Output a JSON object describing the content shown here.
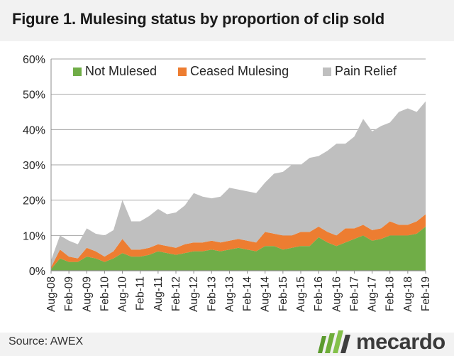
{
  "title": "Figure 1. Mulesing status by proportion of clip sold",
  "source": "Source: AWEX",
  "brand": {
    "name": "mecardo",
    "logo_icon": "mecardo-logo-icon"
  },
  "chart_data": {
    "type": "area",
    "stacked": true,
    "title": "Figure 1. Mulesing status by proportion of clip sold",
    "xlabel": "",
    "ylabel": "",
    "ylim": [
      0,
      60
    ],
    "yticks": [
      "0%",
      "10%",
      "20%",
      "30%",
      "40%",
      "50%",
      "60%"
    ],
    "yticks_values": [
      0,
      10,
      20,
      30,
      40,
      50,
      60
    ],
    "grid": true,
    "legend": "top",
    "x": [
      "Aug-08",
      "Nov-08",
      "Feb-09",
      "May-09",
      "Aug-09",
      "Nov-09",
      "Feb-10",
      "May-10",
      "Aug-10",
      "Nov-10",
      "Feb-11",
      "May-11",
      "Aug-11",
      "Nov-11",
      "Feb-12",
      "May-12",
      "Aug-12",
      "Nov-12",
      "Feb-13",
      "May-13",
      "Aug-13",
      "Nov-13",
      "Feb-14",
      "May-14",
      "Aug-14",
      "Nov-14",
      "Feb-15",
      "May-15",
      "Aug-15",
      "Nov-15",
      "Feb-16",
      "May-16",
      "Aug-16",
      "Nov-16",
      "Feb-17",
      "May-17",
      "Aug-17",
      "Nov-17",
      "Feb-18",
      "May-18",
      "Aug-18",
      "Nov-18",
      "Feb-19"
    ],
    "xticks": [
      "Aug-08",
      "Feb-09",
      "Aug-09",
      "Feb-10",
      "Aug-10",
      "Feb-11",
      "Aug-11",
      "Feb-12",
      "Aug-12",
      "Feb-13",
      "Aug-13",
      "Feb-14",
      "Aug-14",
      "Feb-15",
      "Aug-15",
      "Feb-16",
      "Aug-16",
      "Feb-17",
      "Aug-17",
      "Feb-18",
      "Aug-18",
      "Feb-19"
    ],
    "series": [
      {
        "name": "Not Mulesed",
        "color": "#70ad47",
        "values": [
          0.5,
          3.5,
          2.5,
          2.5,
          4,
          3.5,
          2.5,
          3.5,
          5,
          4,
          4,
          4.5,
          5.5,
          5,
          4.5,
          5,
          5.5,
          5.5,
          6,
          5.5,
          6,
          6.5,
          6,
          5.5,
          7,
          7,
          6,
          6.5,
          7,
          7,
          9.5,
          8,
          7,
          8,
          9,
          10,
          8.5,
          9,
          10,
          10,
          10,
          10.5,
          12.5
        ]
      },
      {
        "name": "Ceased Mulesing",
        "color": "#ed7d31",
        "values": [
          0.5,
          2.5,
          1.5,
          1,
          2.5,
          2,
          1.5,
          2,
          4,
          2,
          2,
          2,
          2,
          2,
          2,
          2.5,
          2.5,
          2.5,
          2.5,
          2.5,
          2.5,
          2.5,
          2.5,
          2.5,
          4,
          3.5,
          4,
          3.5,
          4,
          4,
          3,
          3,
          3,
          4,
          3,
          3,
          3,
          3,
          4,
          3,
          3,
          3.5,
          3.5
        ]
      },
      {
        "name": "Pain Relief",
        "color": "#bfbfbf",
        "values": [
          2,
          4,
          4.5,
          4,
          5.5,
          5,
          6,
          6,
          11,
          8,
          8,
          9,
          10,
          9,
          10,
          11,
          14,
          13,
          12,
          13,
          15,
          14,
          14,
          14,
          14,
          17,
          18,
          20,
          19,
          21,
          20,
          23,
          26,
          24,
          26,
          30,
          28,
          29,
          28,
          32,
          33,
          31,
          32
        ]
      }
    ],
    "totals_reference": [
      3,
      10,
      8.5,
      7.5,
      12,
      10.5,
      10,
      11.5,
      20,
      14,
      14,
      15.5,
      17.5,
      16,
      16.5,
      18.5,
      22,
      21,
      20.5,
      21,
      23.5,
      23,
      22.5,
      22,
      25,
      27.5,
      28,
      30,
      30,
      32,
      32.5,
      34,
      36,
      36,
      38,
      43,
      39.5,
      41,
      42,
      45,
      46,
      45,
      48
    ]
  }
}
